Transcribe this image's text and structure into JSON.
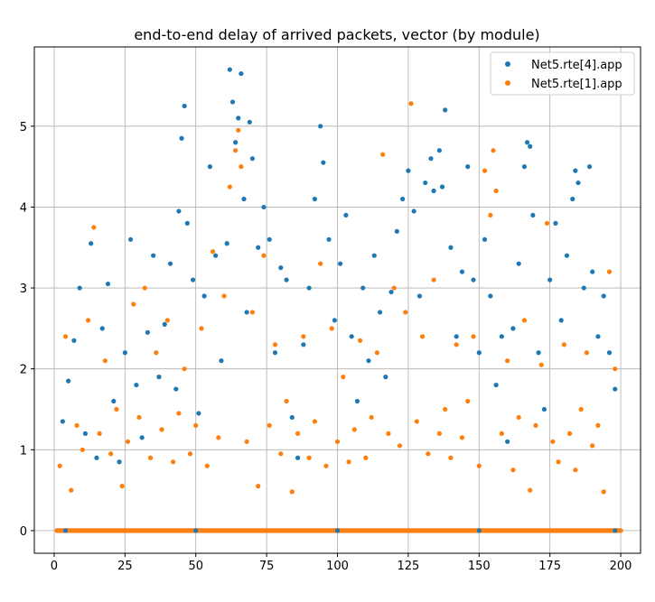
{
  "chart_data": {
    "type": "scatter",
    "title": "end-to-end delay of arrived packets, vector (by module)",
    "xlabel": "",
    "ylabel": "",
    "xlim": [
      -7,
      207
    ],
    "ylim": [
      -0.28,
      5.98
    ],
    "xticks": [
      0,
      25,
      50,
      75,
      100,
      125,
      150,
      175,
      200
    ],
    "yticks": [
      0,
      1,
      2,
      3,
      4,
      5
    ],
    "xtick_labels": [
      "0",
      "25",
      "50",
      "75",
      "100",
      "125",
      "150",
      "175",
      "200"
    ],
    "ytick_labels": [
      "0",
      "1",
      "2",
      "3",
      "4",
      "5"
    ],
    "grid": true,
    "legend_position": "upper right",
    "series": [
      {
        "name": "Net5.rte[4].app",
        "color": "#1f77b4",
        "points": [
          [
            3,
            1.35
          ],
          [
            5,
            1.85
          ],
          [
            7,
            2.35
          ],
          [
            9,
            3.0
          ],
          [
            11,
            1.2
          ],
          [
            13,
            3.55
          ],
          [
            15,
            0.9
          ],
          [
            17,
            2.5
          ],
          [
            19,
            3.05
          ],
          [
            21,
            1.6
          ],
          [
            23,
            0.85
          ],
          [
            25,
            2.2
          ],
          [
            27,
            3.6
          ],
          [
            29,
            1.8
          ],
          [
            31,
            1.15
          ],
          [
            33,
            2.45
          ],
          [
            35,
            3.4
          ],
          [
            37,
            1.9
          ],
          [
            39,
            2.55
          ],
          [
            41,
            3.3
          ],
          [
            43,
            1.75
          ],
          [
            44,
            3.95
          ],
          [
            45,
            4.85
          ],
          [
            46,
            5.25
          ],
          [
            47,
            3.8
          ],
          [
            49,
            3.1
          ],
          [
            51,
            1.45
          ],
          [
            53,
            2.9
          ],
          [
            55,
            4.5
          ],
          [
            57,
            3.4
          ],
          [
            59,
            2.1
          ],
          [
            61,
            3.55
          ],
          [
            62,
            5.7
          ],
          [
            63,
            5.3
          ],
          [
            64,
            4.8
          ],
          [
            65,
            5.1
          ],
          [
            66,
            5.65
          ],
          [
            67,
            4.1
          ],
          [
            68,
            2.7
          ],
          [
            69,
            5.05
          ],
          [
            70,
            4.6
          ],
          [
            72,
            3.5
          ],
          [
            74,
            4.0
          ],
          [
            76,
            3.6
          ],
          [
            78,
            2.2
          ],
          [
            80,
            3.25
          ],
          [
            82,
            3.1
          ],
          [
            84,
            1.4
          ],
          [
            86,
            0.9
          ],
          [
            88,
            2.3
          ],
          [
            90,
            3.0
          ],
          [
            92,
            4.1
          ],
          [
            94,
            5.0
          ],
          [
            95,
            4.55
          ],
          [
            97,
            3.6
          ],
          [
            99,
            2.6
          ],
          [
            101,
            3.3
          ],
          [
            103,
            3.9
          ],
          [
            105,
            2.4
          ],
          [
            107,
            1.6
          ],
          [
            109,
            3.0
          ],
          [
            111,
            2.1
          ],
          [
            113,
            3.4
          ],
          [
            115,
            2.7
          ],
          [
            117,
            1.9
          ],
          [
            119,
            2.95
          ],
          [
            121,
            3.7
          ],
          [
            123,
            4.1
          ],
          [
            125,
            4.45
          ],
          [
            127,
            3.95
          ],
          [
            129,
            2.9
          ],
          [
            131,
            4.3
          ],
          [
            133,
            4.6
          ],
          [
            134,
            4.2
          ],
          [
            136,
            4.7
          ],
          [
            137,
            4.25
          ],
          [
            138,
            5.2
          ],
          [
            140,
            3.5
          ],
          [
            142,
            2.4
          ],
          [
            144,
            3.2
          ],
          [
            146,
            4.5
          ],
          [
            148,
            3.1
          ],
          [
            150,
            2.2
          ],
          [
            152,
            3.6
          ],
          [
            154,
            2.9
          ],
          [
            156,
            1.8
          ],
          [
            158,
            2.4
          ],
          [
            160,
            1.1
          ],
          [
            162,
            2.5
          ],
          [
            164,
            3.3
          ],
          [
            166,
            4.5
          ],
          [
            167,
            4.8
          ],
          [
            168,
            4.75
          ],
          [
            169,
            3.9
          ],
          [
            171,
            2.2
          ],
          [
            173,
            1.5
          ],
          [
            175,
            3.1
          ],
          [
            177,
            3.8
          ],
          [
            179,
            2.6
          ],
          [
            181,
            3.4
          ],
          [
            183,
            4.1
          ],
          [
            184,
            4.45
          ],
          [
            185,
            4.3
          ],
          [
            187,
            3.0
          ],
          [
            189,
            4.5
          ],
          [
            190,
            3.2
          ],
          [
            192,
            2.4
          ],
          [
            194,
            2.9
          ],
          [
            196,
            2.2
          ],
          [
            198,
            1.75
          ],
          [
            4,
            0
          ],
          [
            50,
            0
          ],
          [
            100,
            0
          ],
          [
            150,
            0
          ],
          [
            198,
            0
          ]
        ]
      },
      {
        "name": "Net5.rte[1].app",
        "color": "#ff7f0e",
        "points": [
          [
            2,
            0.8
          ],
          [
            4,
            2.4
          ],
          [
            6,
            0.5
          ],
          [
            8,
            1.3
          ],
          [
            10,
            1.0
          ],
          [
            12,
            2.6
          ],
          [
            14,
            3.75
          ],
          [
            16,
            1.2
          ],
          [
            18,
            2.1
          ],
          [
            20,
            0.95
          ],
          [
            22,
            1.5
          ],
          [
            24,
            0.55
          ],
          [
            26,
            1.1
          ],
          [
            28,
            2.8
          ],
          [
            30,
            1.4
          ],
          [
            32,
            3.0
          ],
          [
            34,
            0.9
          ],
          [
            36,
            2.2
          ],
          [
            38,
            1.25
          ],
          [
            40,
            2.6
          ],
          [
            42,
            0.85
          ],
          [
            44,
            1.45
          ],
          [
            46,
            2.0
          ],
          [
            48,
            0.95
          ],
          [
            50,
            1.3
          ],
          [
            52,
            2.5
          ],
          [
            54,
            0.8
          ],
          [
            56,
            3.45
          ],
          [
            58,
            1.15
          ],
          [
            60,
            2.9
          ],
          [
            62,
            4.25
          ],
          [
            64,
            4.7
          ],
          [
            65,
            4.95
          ],
          [
            66,
            4.5
          ],
          [
            68,
            1.1
          ],
          [
            70,
            2.7
          ],
          [
            72,
            0.55
          ],
          [
            74,
            3.4
          ],
          [
            76,
            1.3
          ],
          [
            78,
            2.3
          ],
          [
            80,
            0.95
          ],
          [
            82,
            1.6
          ],
          [
            84,
            0.48
          ],
          [
            86,
            1.2
          ],
          [
            88,
            2.4
          ],
          [
            90,
            0.9
          ],
          [
            92,
            1.35
          ],
          [
            94,
            3.3
          ],
          [
            96,
            0.8
          ],
          [
            98,
            2.5
          ],
          [
            100,
            1.1
          ],
          [
            102,
            1.9
          ],
          [
            104,
            0.85
          ],
          [
            106,
            1.25
          ],
          [
            108,
            2.35
          ],
          [
            110,
            0.9
          ],
          [
            112,
            1.4
          ],
          [
            114,
            2.2
          ],
          [
            116,
            4.65
          ],
          [
            118,
            1.2
          ],
          [
            120,
            3.0
          ],
          [
            122,
            1.05
          ],
          [
            124,
            2.7
          ],
          [
            126,
            5.28
          ],
          [
            128,
            1.35
          ],
          [
            130,
            2.4
          ],
          [
            132,
            0.95
          ],
          [
            134,
            3.1
          ],
          [
            136,
            1.2
          ],
          [
            138,
            1.5
          ],
          [
            140,
            0.9
          ],
          [
            142,
            2.3
          ],
          [
            144,
            1.15
          ],
          [
            146,
            1.6
          ],
          [
            148,
            2.4
          ],
          [
            150,
            0.8
          ],
          [
            152,
            4.45
          ],
          [
            154,
            3.9
          ],
          [
            155,
            4.7
          ],
          [
            156,
            4.2
          ],
          [
            158,
            1.2
          ],
          [
            160,
            2.1
          ],
          [
            162,
            0.75
          ],
          [
            164,
            1.4
          ],
          [
            166,
            2.6
          ],
          [
            168,
            0.5
          ],
          [
            170,
            1.3
          ],
          [
            172,
            2.05
          ],
          [
            174,
            3.8
          ],
          [
            176,
            1.1
          ],
          [
            178,
            0.85
          ],
          [
            180,
            2.3
          ],
          [
            182,
            1.2
          ],
          [
            184,
            0.75
          ],
          [
            186,
            1.5
          ],
          [
            188,
            2.2
          ],
          [
            190,
            1.05
          ],
          [
            192,
            1.3
          ],
          [
            194,
            0.48
          ],
          [
            196,
            3.2
          ],
          [
            198,
            2.0
          ],
          [
            1,
            0
          ],
          [
            25,
            0
          ],
          [
            75,
            0
          ],
          [
            125,
            0
          ],
          [
            175,
            0
          ],
          [
            200,
            0
          ]
        ]
      }
    ]
  }
}
